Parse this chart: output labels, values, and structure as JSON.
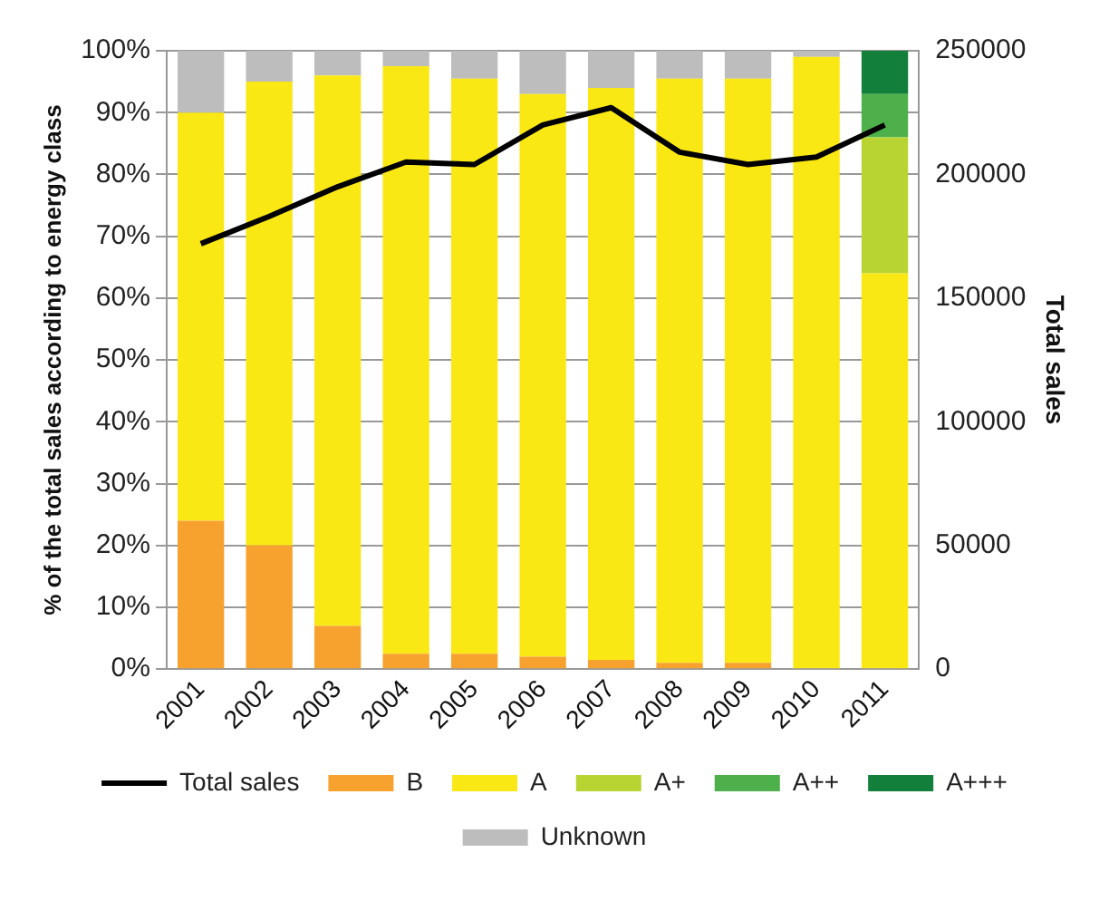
{
  "chart_data": {
    "type": "bar",
    "stacked": true,
    "ylabel": "% of the total sales according to energy class",
    "y2label": "Total sales",
    "categories": [
      "2001",
      "2002",
      "2003",
      "2004",
      "2005",
      "2006",
      "2007",
      "2008",
      "2009",
      "2010",
      "2011"
    ],
    "series": [
      {
        "name": "B",
        "color": "#f7a12e",
        "values": [
          24,
          20,
          7,
          2.5,
          2.5,
          2,
          1.5,
          1,
          1,
          0,
          0
        ]
      },
      {
        "name": "A",
        "color": "#fae814",
        "values": [
          66,
          75,
          89,
          95,
          93,
          91,
          92.5,
          94.5,
          94.5,
          99,
          64
        ]
      },
      {
        "name": "A+",
        "color": "#b8d432",
        "values": [
          0,
          0,
          0,
          0,
          0,
          0,
          0,
          0,
          0,
          0,
          22
        ]
      },
      {
        "name": "A++",
        "color": "#4db04a",
        "values": [
          0,
          0,
          0,
          0,
          0,
          0,
          0,
          0,
          0,
          0,
          7
        ]
      },
      {
        "name": "A+++",
        "color": "#127f3a",
        "values": [
          0,
          0,
          0,
          0,
          0,
          0,
          0,
          0,
          0,
          0,
          7
        ]
      },
      {
        "name": "Unknown",
        "color": "#bdbdbd",
        "values": [
          10,
          5,
          4,
          2.5,
          4.5,
          7,
          6,
          4.5,
          4.5,
          1,
          0
        ]
      },
      {
        "name": "Total sales",
        "type": "line",
        "axis": "y2",
        "color": "#000000",
        "values": [
          172000,
          183000,
          195000,
          205000,
          204000,
          220000,
          227000,
          209000,
          204000,
          207000,
          220000
        ]
      }
    ],
    "ylim": [
      0,
      100
    ],
    "yticks": [
      {
        "value": 0,
        "label": "0%"
      },
      {
        "value": 10,
        "label": "10%"
      },
      {
        "value": 20,
        "label": "20%"
      },
      {
        "value": 30,
        "label": "30%"
      },
      {
        "value": 40,
        "label": "40%"
      },
      {
        "value": 50,
        "label": "50%"
      },
      {
        "value": 60,
        "label": "60%"
      },
      {
        "value": 70,
        "label": "70%"
      },
      {
        "value": 80,
        "label": "80%"
      },
      {
        "value": 90,
        "label": "90%"
      },
      {
        "value": 100,
        "label": "100%"
      }
    ],
    "y2lim": [
      0,
      250000
    ],
    "y2ticks": [
      0,
      50000,
      100000,
      150000,
      200000,
      250000
    ],
    "grid": "y",
    "legend": "bottom",
    "marker": "none"
  }
}
